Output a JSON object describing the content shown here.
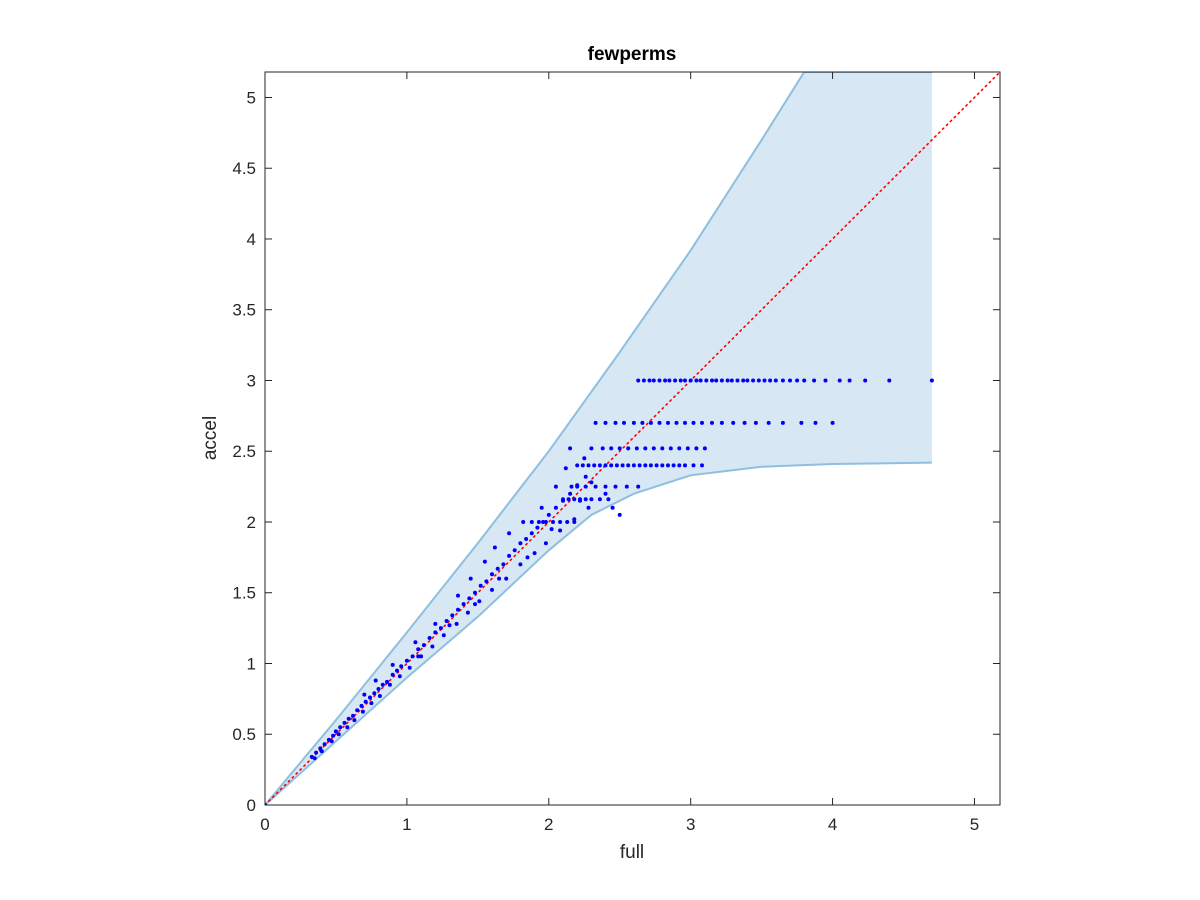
{
  "chart_data": {
    "type": "scatter",
    "title": "fewperms",
    "xlabel": "full",
    "ylabel": "accel",
    "xlim": [
      0,
      5.18
    ],
    "ylim": [
      0,
      5.18
    ],
    "xticks": [
      0,
      1,
      2,
      3,
      4,
      5
    ],
    "yticks": [
      0,
      0.5,
      1,
      1.5,
      2,
      2.5,
      3,
      3.5,
      4,
      4.5,
      5
    ],
    "xtick_labels": [
      "0",
      "1",
      "2",
      "3",
      "4",
      "5"
    ],
    "ytick_labels": [
      "0",
      "0.5",
      "1",
      "1.5",
      "2",
      "2.5",
      "3",
      "3.5",
      "4",
      "4.5",
      "5"
    ],
    "grid": false,
    "box": true,
    "colors": {
      "points": "#0000ff",
      "band_fill": "#d7e7f3",
      "band_edge": "#8ebfe0",
      "identity_line": "#ff0000",
      "axes": "#262626"
    },
    "band": {
      "upper": [
        [
          0,
          0
        ],
        [
          0.5,
          0.6
        ],
        [
          1.0,
          1.22
        ],
        [
          1.5,
          1.85
        ],
        [
          2.0,
          2.5
        ],
        [
          2.5,
          3.2
        ],
        [
          3.0,
          3.92
        ],
        [
          3.5,
          4.7
        ],
        [
          3.8,
          5.18
        ],
        [
          4.7,
          5.18
        ]
      ],
      "lower": [
        [
          0,
          0
        ],
        [
          0.5,
          0.45
        ],
        [
          1.0,
          0.9
        ],
        [
          1.5,
          1.33
        ],
        [
          2.0,
          1.8
        ],
        [
          2.3,
          2.05
        ],
        [
          2.6,
          2.2
        ],
        [
          3.0,
          2.33
        ],
        [
          3.5,
          2.39
        ],
        [
          4.0,
          2.41
        ],
        [
          4.7,
          2.42
        ]
      ]
    },
    "identity_line": [
      [
        0,
        0
      ],
      [
        5.18,
        5.18
      ]
    ],
    "diagonal_points": [
      [
        0.0,
        0.0
      ],
      [
        0.33,
        0.34
      ],
      [
        0.36,
        0.37
      ],
      [
        0.39,
        0.4
      ],
      [
        0.42,
        0.43
      ],
      [
        0.45,
        0.46
      ],
      [
        0.48,
        0.49
      ],
      [
        0.5,
        0.52
      ],
      [
        0.53,
        0.55
      ],
      [
        0.56,
        0.58
      ],
      [
        0.59,
        0.61
      ],
      [
        0.62,
        0.63
      ],
      [
        0.65,
        0.67
      ],
      [
        0.68,
        0.7
      ],
      [
        0.71,
        0.73
      ],
      [
        0.74,
        0.76
      ],
      [
        0.77,
        0.79
      ],
      [
        0.8,
        0.82
      ],
      [
        0.83,
        0.85
      ],
      [
        0.86,
        0.87
      ],
      [
        0.9,
        0.92
      ],
      [
        0.93,
        0.95
      ],
      [
        0.96,
        0.98
      ],
      [
        1.0,
        1.02
      ],
      [
        1.04,
        1.05
      ],
      [
        1.08,
        1.1
      ],
      [
        1.12,
        1.13
      ],
      [
        1.16,
        1.18
      ],
      [
        1.2,
        1.22
      ],
      [
        1.24,
        1.25
      ],
      [
        1.28,
        1.3
      ],
      [
        1.32,
        1.34
      ],
      [
        1.36,
        1.38
      ],
      [
        1.4,
        1.42
      ],
      [
        1.44,
        1.46
      ],
      [
        1.48,
        1.5
      ],
      [
        1.52,
        1.55
      ],
      [
        1.56,
        1.58
      ],
      [
        1.6,
        1.63
      ],
      [
        1.64,
        1.67
      ],
      [
        1.68,
        1.7
      ],
      [
        1.72,
        1.76
      ],
      [
        1.76,
        1.8
      ],
      [
        1.8,
        1.85
      ],
      [
        1.84,
        1.88
      ],
      [
        1.88,
        1.92
      ],
      [
        1.92,
        1.96
      ],
      [
        1.96,
        2.0
      ],
      [
        2.0,
        2.05
      ],
      [
        2.05,
        2.1
      ],
      [
        2.1,
        2.15
      ],
      [
        2.15,
        2.2
      ],
      [
        2.2,
        2.26
      ],
      [
        2.26,
        2.32
      ],
      [
        0.35,
        0.33
      ],
      [
        0.4,
        0.38
      ],
      [
        0.47,
        0.45
      ],
      [
        0.52,
        0.5
      ],
      [
        0.58,
        0.55
      ],
      [
        0.63,
        0.6
      ],
      [
        0.69,
        0.66
      ],
      [
        0.75,
        0.72
      ],
      [
        0.81,
        0.77
      ],
      [
        0.88,
        0.85
      ],
      [
        0.95,
        0.91
      ],
      [
        1.02,
        0.97
      ],
      [
        1.1,
        1.05
      ],
      [
        1.18,
        1.12
      ],
      [
        1.26,
        1.2
      ],
      [
        1.35,
        1.28
      ],
      [
        1.43,
        1.36
      ],
      [
        1.51,
        1.44
      ],
      [
        1.6,
        1.52
      ],
      [
        1.7,
        1.6
      ],
      [
        1.8,
        1.7
      ],
      [
        1.9,
        1.78
      ],
      [
        1.98,
        1.85
      ],
      [
        2.08,
        1.94
      ],
      [
        2.18,
        2.02
      ],
      [
        2.28,
        2.1
      ],
      [
        0.7,
        0.78
      ],
      [
        0.78,
        0.88
      ],
      [
        0.9,
        0.99
      ],
      [
        1.06,
        1.15
      ],
      [
        1.2,
        1.28
      ],
      [
        1.36,
        1.48
      ],
      [
        1.45,
        1.6
      ],
      [
        1.55,
        1.72
      ],
      [
        1.62,
        1.82
      ],
      [
        1.72,
        1.92
      ],
      [
        1.82,
        2.0
      ],
      [
        1.95,
        2.1
      ],
      [
        2.05,
        2.25
      ],
      [
        2.12,
        2.38
      ],
      [
        2.15,
        2.52
      ],
      [
        2.25,
        2.45
      ],
      [
        1.08,
        1.05
      ],
      [
        1.3,
        1.27
      ],
      [
        1.48,
        1.42
      ],
      [
        1.65,
        1.6
      ],
      [
        1.85,
        1.75
      ],
      [
        2.02,
        1.95
      ],
      [
        2.22,
        2.15
      ],
      [
        2.3,
        2.28
      ],
      [
        2.4,
        2.2
      ],
      [
        2.45,
        2.1
      ],
      [
        2.5,
        2.05
      ]
    ],
    "rows": [
      {
        "y": 3.0,
        "x": [
          2.63,
          2.67,
          2.71,
          2.74,
          2.78,
          2.82,
          2.85,
          2.89,
          2.93,
          2.96,
          3.0,
          3.04,
          3.07,
          3.11,
          3.15,
          3.18,
          3.22,
          3.26,
          3.29,
          3.33,
          3.37,
          3.4,
          3.44,
          3.48,
          3.52,
          3.56,
          3.6,
          3.65,
          3.7,
          3.75,
          3.8,
          3.87,
          3.95,
          4.05,
          4.12,
          4.23,
          4.4,
          4.7
        ]
      },
      {
        "y": 2.7,
        "x": [
          2.33,
          2.4,
          2.47,
          2.53,
          2.6,
          2.66,
          2.72,
          2.78,
          2.84,
          2.9,
          2.96,
          3.02,
          3.08,
          3.15,
          3.22,
          3.3,
          3.38,
          3.46,
          3.55,
          3.65,
          3.78,
          3.88,
          4.0
        ]
      },
      {
        "y": 2.52,
        "x": [
          2.3,
          2.38,
          2.44,
          2.5,
          2.56,
          2.62,
          2.68,
          2.74,
          2.8,
          2.86,
          2.92,
          2.98,
          3.04,
          3.1
        ]
      },
      {
        "y": 2.4,
        "x": [
          2.2,
          2.24,
          2.28,
          2.32,
          2.36,
          2.4,
          2.44,
          2.48,
          2.52,
          2.56,
          2.6,
          2.64,
          2.68,
          2.72,
          2.76,
          2.8,
          2.84,
          2.88,
          2.92,
          2.96,
          3.02,
          3.08
        ]
      },
      {
        "y": 2.25,
        "x": [
          2.16,
          2.2,
          2.26,
          2.33,
          2.4,
          2.47,
          2.55,
          2.63
        ]
      },
      {
        "y": 2.16,
        "x": [
          2.1,
          2.14,
          2.18,
          2.22,
          2.26,
          2.3,
          2.36,
          2.42
        ]
      },
      {
        "y": 2.0,
        "x": [
          1.88,
          1.93,
          1.98,
          2.03,
          2.08,
          2.13,
          2.18
        ]
      }
    ]
  }
}
